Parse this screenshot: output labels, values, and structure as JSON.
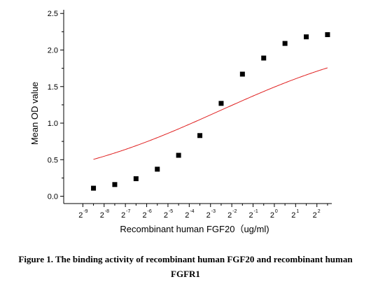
{
  "chart_data": {
    "type": "scatter",
    "xlabel": "Recombinant human  FGF20（ug/ml)",
    "ylabel": "Mean OD value",
    "x_scale": "log2",
    "x_ticks": [
      {
        "base": "2",
        "exp": "-9",
        "value": -9
      },
      {
        "base": "2",
        "exp": "-8",
        "value": -8
      },
      {
        "base": "2",
        "exp": "-7",
        "value": -7
      },
      {
        "base": "2",
        "exp": "-6",
        "value": -6
      },
      {
        "base": "2",
        "exp": "-5",
        "value": -5
      },
      {
        "base": "2",
        "exp": "-4",
        "value": -4
      },
      {
        "base": "2",
        "exp": "-3",
        "value": -3
      },
      {
        "base": "2",
        "exp": "-2",
        "value": -2
      },
      {
        "base": "2",
        "exp": "-1",
        "value": -1
      },
      {
        "base": "2",
        "exp": "0",
        "value": 0
      },
      {
        "base": "2",
        "exp": "1",
        "value": 1
      },
      {
        "base": "2",
        "exp": "2",
        "value": 2
      }
    ],
    "y_ticks": [
      "0.0",
      "0.5",
      "1.0",
      "1.5",
      "2.0",
      "2.5"
    ],
    "ylim": [
      -0.1,
      2.55
    ],
    "xlim_log2": [
      -9.9,
      2.7
    ],
    "series": [
      {
        "marker": "square",
        "color": "#000000",
        "points": [
          {
            "log2_x": -8.5,
            "y": 0.11
          },
          {
            "log2_x": -7.5,
            "y": 0.16
          },
          {
            "log2_x": -6.5,
            "y": 0.24
          },
          {
            "log2_x": -5.5,
            "y": 0.37
          },
          {
            "log2_x": -4.5,
            "y": 0.56
          },
          {
            "log2_x": -3.5,
            "y": 0.83
          },
          {
            "log2_x": -2.5,
            "y": 1.27
          },
          {
            "log2_x": -1.5,
            "y": 1.67
          },
          {
            "log2_x": -0.5,
            "y": 1.89
          },
          {
            "log2_x": 0.5,
            "y": 2.09
          },
          {
            "log2_x": 1.5,
            "y": 2.18
          },
          {
            "log2_x": 2.5,
            "y": 2.21
          }
        ]
      }
    ],
    "fit_curve": {
      "color": "#e02020",
      "bottom": 0.09,
      "top": 2.24,
      "log2_ec50": -2.6,
      "hill": 0.35
    }
  },
  "caption": {
    "line1": "Figure 1. The binding activity of recombinant human FGF20 and recombinant human",
    "line2": "FGFR1"
  }
}
